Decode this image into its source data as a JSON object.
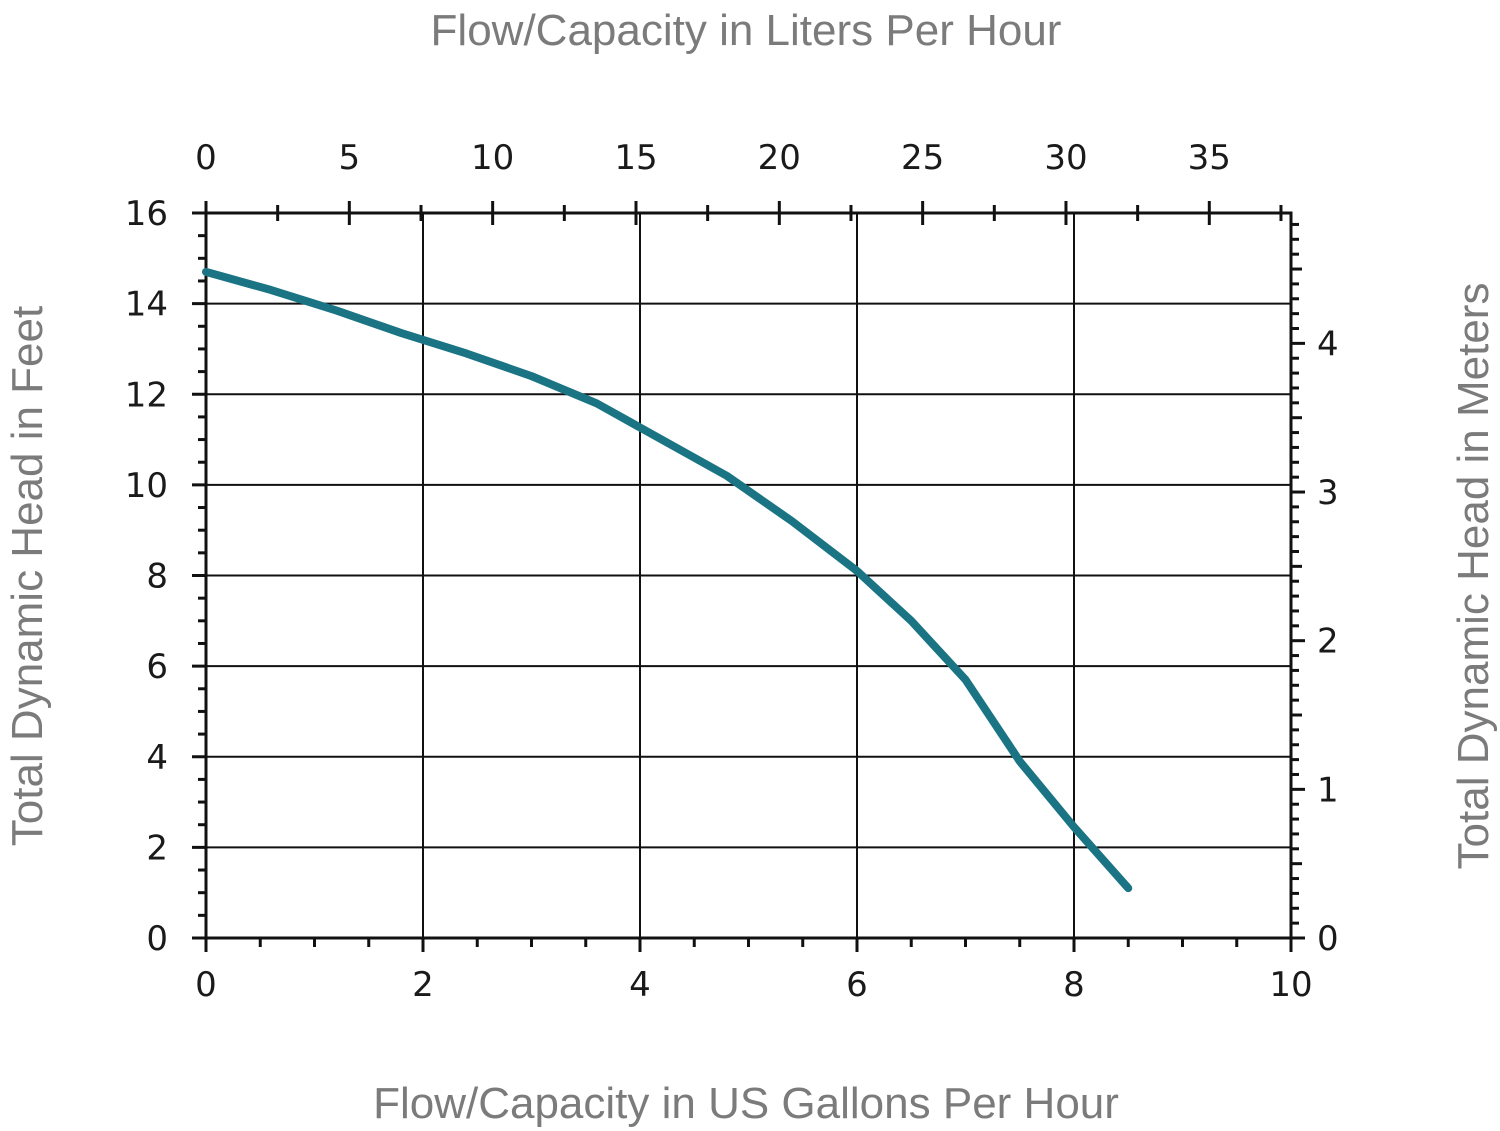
{
  "chart_data": {
    "type": "line",
    "title": "",
    "xlabel": "Flow/Capacity in US Gallons Per Hour",
    "ylabel": "Total Dynamic Head in Feet",
    "x2label": "Flow/Capacity in Liters Per Hour",
    "y2label": "Total Dynamic Head in Meters",
    "xlim": [
      0,
      10
    ],
    "ylim": [
      0,
      16
    ],
    "x2lim": [
      0,
      37.85
    ],
    "y2lim": [
      0,
      4.877
    ],
    "xticks": [
      0,
      2,
      4,
      6,
      8,
      10
    ],
    "yticks": [
      0,
      2,
      4,
      6,
      8,
      10,
      12,
      14,
      16
    ],
    "x2ticks": [
      0,
      5,
      10,
      15,
      20,
      25,
      30,
      35
    ],
    "y2ticks": [
      0,
      1,
      2,
      3,
      4
    ],
    "grid": true,
    "line_color": "#1a7484",
    "series": [
      {
        "x": [
          0,
          0.6,
          1.2,
          1.8,
          2.4,
          3.0,
          3.6,
          4.2,
          4.8,
          5.4,
          6.0,
          6.5,
          7.0,
          7.5,
          8.0,
          8.5
        ],
        "y": [
          14.7,
          14.3,
          13.85,
          13.35,
          12.9,
          12.4,
          11.8,
          11.0,
          10.2,
          9.2,
          8.1,
          7.0,
          5.7,
          3.9,
          2.45,
          1.1
        ]
      }
    ]
  }
}
